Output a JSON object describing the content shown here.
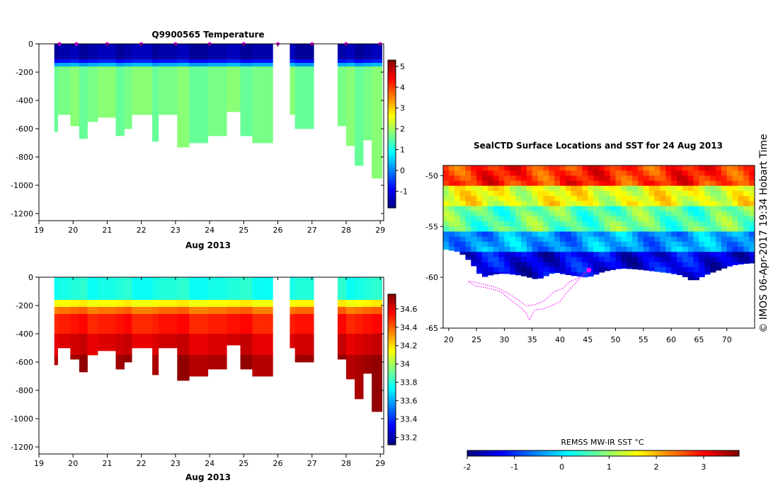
{
  "colors": {
    "jet": [
      "#00007f",
      "#0000ff",
      "#007fff",
      "#00ffff",
      "#7fff7f",
      "#ffff00",
      "#ff7f00",
      "#ff0000",
      "#7f0000"
    ],
    "profile_marker": "#ff00ff",
    "track": "#ff00ff"
  },
  "chart_data": [
    {
      "type": "heatmap",
      "title": "Q9900565  Temperature",
      "xlabel": "Aug 2013",
      "ylabel": "",
      "xlim": [
        19,
        29.1
      ],
      "ylim": [
        -1250,
        0
      ],
      "x_ticks": [
        "19",
        "20",
        "21",
        "22",
        "23",
        "24",
        "25",
        "26",
        "27",
        "28",
        "29"
      ],
      "y_ticks": [
        "0",
        "-200",
        "-400",
        "-600",
        "-800",
        "-1000",
        "-1200"
      ],
      "x_tick_values": [
        19,
        20,
        21,
        22,
        23,
        24,
        25,
        26,
        27,
        28,
        29
      ],
      "y_tick_values": [
        0,
        -200,
        -400,
        -600,
        -800,
        -1000,
        -1200
      ],
      "colorbar_ticks": [
        "-1",
        "0",
        "1",
        "2",
        "3",
        "4",
        "5"
      ],
      "colorbar_tick_values": [
        -1,
        0,
        1,
        2,
        3,
        4,
        5
      ],
      "colorbar_range": [
        -1.8,
        5.3
      ],
      "profiles": [
        {
          "t0": 19.45,
          "t1": 19.55,
          "max_depth": 620
        },
        {
          "t0": 19.55,
          "t1": 19.92,
          "max_depth": 500
        },
        {
          "t0": 19.92,
          "t1": 20.18,
          "max_depth": 580
        },
        {
          "t0": 20.18,
          "t1": 20.42,
          "max_depth": 670
        },
        {
          "t0": 20.42,
          "t1": 20.72,
          "max_depth": 550
        },
        {
          "t0": 20.72,
          "t1": 21.25,
          "max_depth": 520
        },
        {
          "t0": 21.25,
          "t1": 21.5,
          "max_depth": 650
        },
        {
          "t0": 21.5,
          "t1": 21.72,
          "max_depth": 600
        },
        {
          "t0": 21.72,
          "t1": 22.32,
          "max_depth": 500
        },
        {
          "t0": 22.32,
          "t1": 22.5,
          "max_depth": 690
        },
        {
          "t0": 22.5,
          "t1": 23.05,
          "max_depth": 500
        },
        {
          "t0": 23.05,
          "t1": 23.4,
          "max_depth": 730
        },
        {
          "t0": 23.4,
          "t1": 23.95,
          "max_depth": 700
        },
        {
          "t0": 23.95,
          "t1": 24.5,
          "max_depth": 650
        },
        {
          "t0": 24.5,
          "t1": 24.9,
          "max_depth": 480
        },
        {
          "t0": 24.9,
          "t1": 25.25,
          "max_depth": 650
        },
        {
          "t0": 25.25,
          "t1": 25.85,
          "max_depth": 700
        },
        {
          "t0": 26.35,
          "t1": 26.5,
          "max_depth": 500
        },
        {
          "t0": 26.5,
          "t1": 27.05,
          "max_depth": 600
        },
        {
          "t0": 27.75,
          "t1": 28.0,
          "max_depth": 580
        },
        {
          "t0": 28.0,
          "t1": 28.25,
          "max_depth": 720
        },
        {
          "t0": 28.25,
          "t1": 28.5,
          "max_depth": 860
        },
        {
          "t0": 28.5,
          "t1": 28.75,
          "max_depth": 680
        },
        {
          "t0": 28.75,
          "t1": 29.05,
          "max_depth": 950
        }
      ],
      "layers": [
        {
          "depth0": 0,
          "depth1": 110,
          "value": -1.5
        },
        {
          "depth0": 110,
          "depth1": 135,
          "value": -0.8
        },
        {
          "depth0": 135,
          "depth1": 160,
          "value": 0.3
        },
        {
          "depth0": 160,
          "depth1": 2000,
          "value": 1.7
        }
      ],
      "profile_markers": [
        19.6,
        20.1,
        21.0,
        22.0,
        23.0,
        24.0,
        25.0,
        26.0,
        27.0,
        28.0,
        29.0
      ]
    },
    {
      "type": "heatmap",
      "title": "",
      "xlabel": "Aug 2013",
      "ylabel": "",
      "xlim": [
        19,
        29.1
      ],
      "ylim": [
        -1250,
        0
      ],
      "x_ticks": [
        "19",
        "20",
        "21",
        "22",
        "23",
        "24",
        "25",
        "26",
        "27",
        "28",
        "29"
      ],
      "y_ticks": [
        "0",
        "-200",
        "-400",
        "-600",
        "-800",
        "-1000",
        "-1200"
      ],
      "x_tick_values": [
        19,
        20,
        21,
        22,
        23,
        24,
        25,
        26,
        27,
        28,
        29
      ],
      "y_tick_values": [
        0,
        -200,
        -400,
        -600,
        -800,
        -1000,
        -1200
      ],
      "colorbar_ticks": [
        "33.2",
        "33.4",
        "33.6",
        "33.8",
        "34",
        "34.2",
        "34.4",
        "34.6"
      ],
      "colorbar_tick_values": [
        33.2,
        33.4,
        33.6,
        33.8,
        34.0,
        34.2,
        34.4,
        34.6
      ],
      "colorbar_range": [
        33.12,
        34.76
      ],
      "layers": [
        {
          "depth0": 0,
          "depth1": 160,
          "value": 33.78
        },
        {
          "depth0": 160,
          "depth1": 210,
          "value": 34.15
        },
        {
          "depth0": 210,
          "depth1": 260,
          "value": 34.38
        },
        {
          "depth0": 260,
          "depth1": 400,
          "value": 34.52
        },
        {
          "depth0": 400,
          "depth1": 550,
          "value": 34.62
        },
        {
          "depth0": 550,
          "depth1": 2000,
          "value": 34.7
        }
      ]
    },
    {
      "type": "heatmap",
      "title": "SealCTD Surface Locations and SST for 24 Aug 2013",
      "xlabel": "",
      "ylabel": "",
      "xlim": [
        19,
        75
      ],
      "ylim": [
        -65,
        -49
      ],
      "x_ticks": [
        "20",
        "25",
        "30",
        "35",
        "40",
        "45",
        "50",
        "55",
        "60",
        "65",
        "70"
      ],
      "y_ticks": [
        "-50",
        "-55",
        "-60",
        "-65"
      ],
      "x_tick_values": [
        20,
        25,
        30,
        35,
        40,
        45,
        50,
        55,
        60,
        65,
        70
      ],
      "y_tick_values": [
        -50,
        -55,
        -60,
        -65
      ],
      "colorbar_label": "REMSS MW-IR SST °C",
      "colorbar_ticks": [
        "-2",
        "-1",
        "0",
        "1",
        "2",
        "3"
      ],
      "colorbar_tick_values": [
        -2,
        -1,
        0,
        1,
        2,
        3
      ],
      "colorbar_range": [
        -2,
        3.75
      ],
      "sst_zones": [
        {
          "lat0": -49,
          "lat1": -51,
          "value": 2.8
        },
        {
          "lat0": -51,
          "lat1": -53,
          "value": 1.5
        },
        {
          "lat0": -53,
          "lat1": -55.5,
          "value": 0.7
        },
        {
          "lat0": -55.5,
          "lat1": -57.5,
          "value": -0.4
        },
        {
          "lat0": -57.5,
          "lat1": -65,
          "value": -1.4
        }
      ],
      "ice_edge": [
        [
          19,
          -57.2
        ],
        [
          22,
          -57.5
        ],
        [
          24,
          -58.5
        ],
        [
          26,
          -60.0
        ],
        [
          28,
          -59.7
        ],
        [
          30,
          -59.6
        ],
        [
          33,
          -59.8
        ],
        [
          36,
          -60.2
        ],
        [
          39,
          -59.5
        ],
        [
          42,
          -59.8
        ],
        [
          45,
          -60.0
        ],
        [
          48,
          -59.4
        ],
        [
          51,
          -59.1
        ],
        [
          54,
          -59.2
        ],
        [
          57,
          -59.4
        ],
        [
          60,
          -59.6
        ],
        [
          62,
          -59.8
        ],
        [
          64,
          -60.4
        ],
        [
          66,
          -59.8
        ],
        [
          68,
          -59.4
        ],
        [
          71,
          -58.8
        ],
        [
          74,
          -58.6
        ],
        [
          75,
          -58.6
        ]
      ],
      "seal_track": [
        [
          45.6,
          -59.2
        ],
        [
          45.0,
          -59.4
        ],
        [
          44.2,
          -59.6
        ],
        [
          43.4,
          -60.2
        ],
        [
          42.4,
          -60.8
        ],
        [
          41.2,
          -61.5
        ],
        [
          40.0,
          -62.4
        ],
        [
          38.5,
          -62.8
        ],
        [
          37.0,
          -63.1
        ],
        [
          35.5,
          -63.2
        ],
        [
          34.5,
          -64.2
        ],
        [
          34.0,
          -63.6
        ],
        [
          33.0,
          -63.0
        ],
        [
          31.8,
          -62.5
        ],
        [
          30.6,
          -62.0
        ],
        [
          29.3,
          -61.4
        ],
        [
          28.0,
          -61.2
        ],
        [
          26.5,
          -61.0
        ],
        [
          25.0,
          -60.9
        ],
        [
          24.0,
          -60.6
        ],
        [
          23.5,
          -60.4
        ],
        [
          24.8,
          -60.5
        ],
        [
          26.4,
          -60.7
        ],
        [
          28.6,
          -61.0
        ],
        [
          30.8,
          -61.6
        ],
        [
          32.4,
          -62.2
        ],
        [
          34.0,
          -62.8
        ],
        [
          35.5,
          -62.7
        ],
        [
          37.2,
          -62.3
        ],
        [
          39.0,
          -61.4
        ],
        [
          40.6,
          -61.1
        ],
        [
          41.8,
          -60.4
        ],
        [
          42.8,
          -60.2
        ],
        [
          44.0,
          -59.9
        ],
        [
          45.6,
          -59.2
        ]
      ],
      "surface_location": [
        45.2,
        -59.3
      ]
    }
  ],
  "side_text": "©  IMOS 06-Apr-2017 19:34 Hobart Time"
}
